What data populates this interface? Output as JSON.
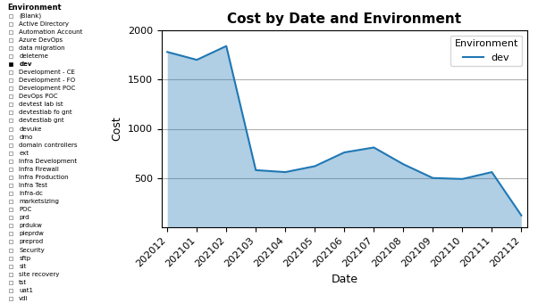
{
  "chart_data": {
    "type": "area",
    "title": "Cost by Date and Environment",
    "xlabel": "Date",
    "ylabel": "Cost",
    "categories": [
      "202012",
      "202101",
      "202102",
      "202103",
      "202104",
      "202105",
      "202106",
      "202107",
      "202108",
      "202109",
      "202110",
      "202111",
      "202112"
    ],
    "series": [
      {
        "name": "dev",
        "values": [
          1780,
          1700,
          1840,
          580,
          560,
          620,
          760,
          810,
          640,
          500,
          490,
          560,
          120
        ]
      }
    ],
    "legend_title": "Environment",
    "legend": "upper right",
    "ylim": [
      0,
      2000
    ],
    "yticks": [
      500,
      1000,
      1500,
      2000
    ],
    "grid": true,
    "annotations": [
      "Environment",
      "(Blank)",
      "Active Directory",
      "Automation Account",
      "Azure DevOps",
      "data migration",
      "deleteme",
      "dev",
      "Development - CE",
      "Development - FO",
      "Development POC",
      "DevOps POC",
      "devtest lab ist",
      "devtestlab fo gnt",
      "devtestlab gnt",
      "devuke",
      "dmo",
      "domain controllers",
      "ext",
      "Infra Development",
      "Infra Firewall",
      "Infra Production",
      "Infra Test",
      "infra-dc",
      "marketsizing",
      "POC",
      "prd",
      "prdukw",
      "pieprdw",
      "preprod",
      "Security",
      "sftp",
      "sit",
      "site recovery",
      "tst",
      "uat1",
      "vdi"
    ]
  }
}
